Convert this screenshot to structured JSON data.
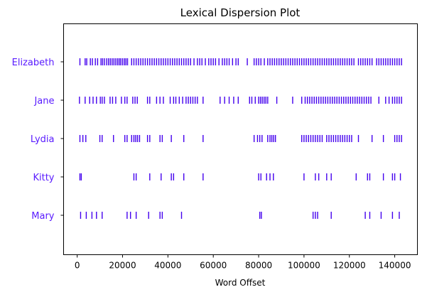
{
  "chart_data": {
    "type": "scatter",
    "title": "Lexical Dispersion Plot",
    "xlabel": "Word Offset",
    "ylabel": "",
    "xlim": [
      -6000,
      150000
    ],
    "xticks": [
      0,
      20000,
      40000,
      60000,
      80000,
      100000,
      120000,
      140000
    ],
    "marker": "|",
    "label_color": "#5a1cff",
    "mark_color": "#4400ee",
    "grid": false,
    "series": [
      {
        "name": "Elizabeth",
        "x": [
          1200,
          3500,
          4200,
          5800,
          6700,
          8000,
          9000,
          10500,
          11200,
          12000,
          13000,
          13800,
          14600,
          15400,
          16200,
          17000,
          17800,
          18500,
          19200,
          20000,
          20800,
          21500,
          22200,
          24000,
          25000,
          26000,
          27000,
          28000,
          29000,
          30000,
          31000,
          32000,
          33000,
          34000,
          35000,
          36000,
          37000,
          38000,
          39000,
          40000,
          41000,
          42000,
          43000,
          44000,
          45000,
          46000,
          47000,
          48000,
          49000,
          50000,
          51500,
          53000,
          54000,
          55000,
          56500,
          58000,
          59000,
          60000,
          61000,
          62500,
          64000,
          65000,
          66000,
          67000,
          68500,
          70000,
          71000,
          75000,
          78000,
          79000,
          80000,
          81000,
          82500,
          84000,
          85000,
          86000,
          87000,
          88000,
          89000,
          90000,
          91000,
          92000,
          93000,
          94000,
          95000,
          96000,
          97000,
          98000,
          99000,
          100000,
          101000,
          102000,
          103000,
          104000,
          105000,
          106000,
          107000,
          108000,
          109000,
          110000,
          111000,
          112000,
          113000,
          114000,
          115000,
          116000,
          117000,
          118000,
          119000,
          120000,
          121000,
          122000,
          124000,
          125000,
          126000,
          127000,
          128000,
          129000,
          130000,
          132000,
          133000,
          134000,
          135000,
          136000,
          137000,
          138000,
          139000,
          140000,
          141000,
          142000,
          143000
        ]
      },
      {
        "name": "Jane",
        "x": [
          1000,
          3500,
          5500,
          7000,
          8500,
          10200,
          11000,
          12000,
          14500,
          15600,
          17000,
          19500,
          21000,
          22000,
          24500,
          25500,
          26500,
          31000,
          32000,
          35000,
          36500,
          38000,
          41000,
          42500,
          43500,
          45000,
          46500,
          48000,
          49000,
          50000,
          51000,
          52000,
          53000,
          55500,
          63000,
          65000,
          67000,
          69000,
          71000,
          76000,
          77000,
          78500,
          80000,
          80800,
          81600,
          82400,
          83200,
          84000,
          88000,
          95000,
          99000,
          100500,
          101500,
          102500,
          103500,
          104500,
          105500,
          106500,
          107500,
          108500,
          109500,
          110500,
          111500,
          112500,
          113500,
          114500,
          115500,
          116500,
          117500,
          118500,
          119500,
          120500,
          121500,
          122500,
          123500,
          124500,
          125500,
          126500,
          127500,
          128500,
          129500,
          133000,
          136000,
          137500,
          139000,
          140000,
          141000,
          142000,
          143000
        ]
      },
      {
        "name": "Lydia",
        "x": [
          1200,
          2500,
          3800,
          10000,
          11000,
          16000,
          21000,
          22000,
          24000,
          25000,
          25800,
          26600,
          27500,
          31000,
          32000,
          36500,
          37500,
          41500,
          47000,
          55500,
          78000,
          79500,
          80500,
          81500,
          84000,
          85000,
          85800,
          86600,
          87400,
          99000,
          100000,
          101000,
          102000,
          103000,
          104000,
          105000,
          106000,
          107000,
          108000,
          110000,
          111000,
          112000,
          113000,
          114000,
          115000,
          116000,
          117000,
          118000,
          119000,
          120000,
          121000,
          124000,
          130000,
          135000,
          140000,
          141000,
          142000,
          143000
        ]
      },
      {
        "name": "Kitty",
        "x": [
          1200,
          1800,
          25000,
          26000,
          32000,
          37000,
          41500,
          42500,
          47000,
          55500,
          80000,
          81000,
          83500,
          85000,
          86500,
          100000,
          105000,
          106500,
          110000,
          112000,
          123000,
          128000,
          129000,
          135000,
          139000,
          140000,
          142500
        ]
      },
      {
        "name": "Mary",
        "x": [
          1500,
          4000,
          6500,
          8500,
          11000,
          22000,
          23500,
          26000,
          31500,
          36500,
          37500,
          46000,
          80500,
          81200,
          104000,
          105000,
          106000,
          112000,
          127000,
          129000,
          134000,
          139000,
          142000
        ]
      }
    ]
  }
}
